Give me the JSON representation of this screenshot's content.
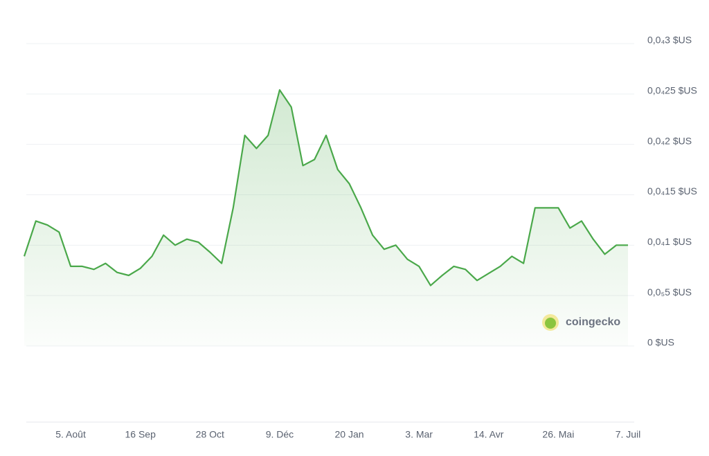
{
  "chart_data": {
    "type": "line",
    "categories": [
      null,
      null,
      null,
      null,
      "5. Août",
      null,
      null,
      null,
      null,
      null,
      "16 Sep",
      null,
      null,
      null,
      null,
      null,
      "28 Oct",
      null,
      null,
      null,
      null,
      null,
      "9. Déc",
      null,
      null,
      null,
      null,
      null,
      "20 Jan",
      null,
      null,
      null,
      null,
      null,
      "3. Mar",
      null,
      null,
      null,
      null,
      null,
      "14. Avr",
      null,
      null,
      null,
      null,
      null,
      "26. Mai",
      null,
      null,
      null,
      null,
      null,
      "7. Juil"
    ],
    "values": [
      8.9e-06,
      1.24e-05,
      1.2e-05,
      1.13e-05,
      7.9e-06,
      7.9e-06,
      7.6e-06,
      8.2e-06,
      7.3e-06,
      7e-06,
      7.7e-06,
      8.9e-06,
      1.1e-05,
      1e-05,
      1.06e-05,
      1.03e-05,
      9.3e-06,
      8.2e-06,
      1.37e-05,
      2.09e-05,
      1.96e-05,
      2.09e-05,
      2.54e-05,
      2.37e-05,
      1.79e-05,
      1.85e-05,
      2.09e-05,
      1.75e-05,
      1.61e-05,
      1.37e-05,
      1.1e-05,
      9.6e-06,
      1e-05,
      8.6e-06,
      7.9e-06,
      6e-06,
      7e-06,
      7.9e-06,
      7.6e-06,
      6.5e-06,
      7.2e-06,
      7.9e-06,
      8.9e-06,
      8.2e-06,
      1.37e-05,
      1.37e-05,
      1.37e-05,
      1.17e-05,
      1.24e-05,
      1.06e-05,
      9.1e-06,
      1e-05,
      1e-05
    ],
    "color": "#4aa84a",
    "ylim": [
      0,
      3e-05
    ],
    "yticks": [
      {
        "value": 0,
        "label": "0 $US"
      },
      {
        "value": 5e-06,
        "label": "0,0₅5 $US"
      },
      {
        "value": 1e-05,
        "label": "0,0₄1 $US"
      },
      {
        "value": 1.5e-05,
        "label": "0,0₄15 $US"
      },
      {
        "value": 2e-05,
        "label": "0,0₄2 $US"
      },
      {
        "value": 2.5e-05,
        "label": "0,0₄25 $US"
      },
      {
        "value": 3e-05,
        "label": "0,0₄3 $US"
      }
    ],
    "grid": true,
    "watermark": "coingecko"
  }
}
